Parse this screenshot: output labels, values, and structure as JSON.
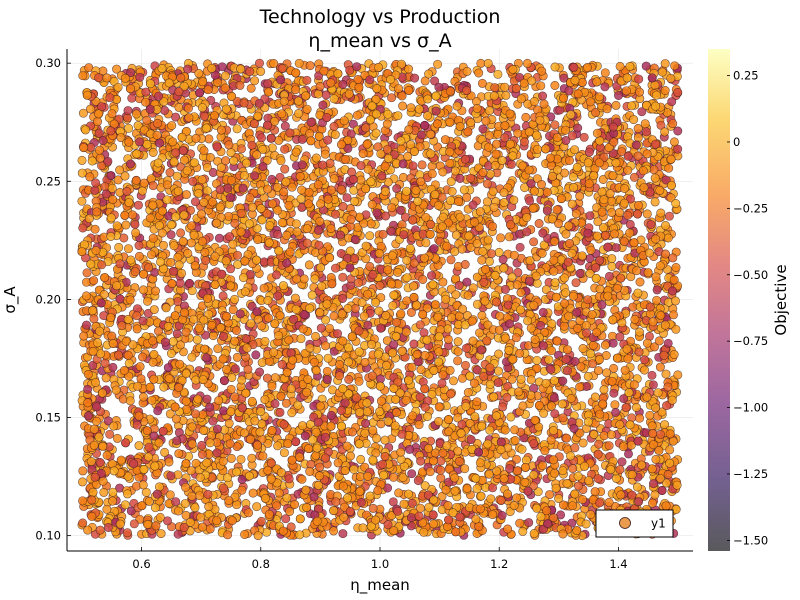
{
  "chart_data": {
    "type": "scatter",
    "title": "Technology vs Production",
    "subtitle": "η_mean vs σ_A",
    "xlabel": "η_mean",
    "ylabel": "σ_A",
    "xlim": [
      0.475,
      1.525
    ],
    "ylim": [
      0.0935,
      0.306
    ],
    "x_ticks": [
      0.6,
      0.8,
      1.0,
      1.2,
      1.4
    ],
    "x_tick_labels": [
      "0.6",
      "0.8",
      "1.0",
      "1.2",
      "1.4"
    ],
    "y_ticks": [
      0.1,
      0.15,
      0.2,
      0.25,
      0.3
    ],
    "y_tick_labels": [
      "0.10",
      "0.15",
      "0.20",
      "0.25",
      "0.30"
    ],
    "grid": true,
    "legend": {
      "position": "bottom-right",
      "entries": [
        "y1"
      ]
    },
    "series": [
      {
        "name": "y1",
        "x_range": [
          0.5,
          1.5
        ],
        "y_range": [
          0.1,
          0.3
        ],
        "distribution": "uniform, densely covering the full range",
        "marker_color": "#e68a2e",
        "marker_edge": "#3a1a1a",
        "color_value_range": [
          -0.7,
          0.0
        ]
      }
    ],
    "colorbar": {
      "label": "Objective",
      "range": [
        -1.54,
        0.35
      ],
      "ticks": [
        0.25,
        0,
        -0.25,
        -0.5,
        -0.75,
        -1.0,
        -1.25,
        -1.5
      ],
      "tick_labels": [
        "0.25",
        "0",
        "−0.25",
        "−0.50",
        "−0.75",
        "−1.00",
        "−1.25",
        "−1.50"
      ],
      "colormap": [
        "#fcffa4",
        "#fac228",
        "#f57d15",
        "#d44842",
        "#9f2a63",
        "#65156e",
        "#280b54",
        "#000004"
      ]
    }
  }
}
